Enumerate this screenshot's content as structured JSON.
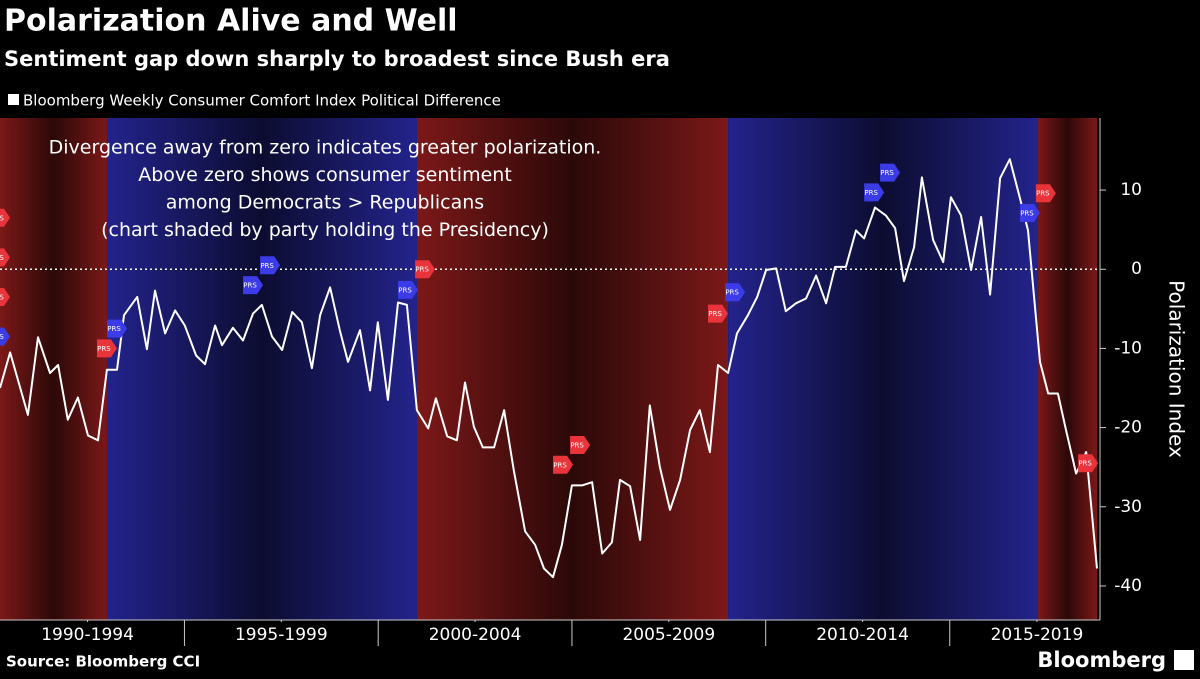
{
  "chart_data": {
    "type": "line",
    "title": "Polarization Alive and Well",
    "subtitle": "Sentiment gap down sharply to broadest since Bush era",
    "y_label": "Polarization Index",
    "note": [
      "Divergence away from zero indicates greater polarization.",
      "Above zero shows consumer sentiment",
      "among Democrats > Republicans",
      "(chart shaded by party holding the Presidency)"
    ],
    "source": "Source: Bloomberg CCI",
    "brand": "Bloomberg",
    "xlim": [
      1990.24,
      2018.55
    ],
    "ylim": [
      -44.3,
      19.1
    ],
    "yticks": [
      -40,
      -30,
      -20,
      -10,
      0,
      10
    ],
    "xticks": [
      {
        "value": 1992.5,
        "label": "1990-1994"
      },
      {
        "value": 1997.5,
        "label": "1995-1999"
      },
      {
        "value": 2002.5,
        "label": "2000-2004"
      },
      {
        "value": 2007.5,
        "label": "2005-2009"
      },
      {
        "value": 2012.5,
        "label": "2010-2014"
      },
      {
        "value": 2017.0,
        "label": "2015-2019"
      }
    ],
    "bands": [
      {
        "from": 1990.24,
        "to": 1993.0,
        "color": "#7c1818"
      },
      {
        "from": 1993.0,
        "to": 2001.0,
        "color": "#23238c"
      },
      {
        "from": 2001.0,
        "to": 2009.03,
        "color": "#7c1818"
      },
      {
        "from": 2009.03,
        "to": 2017.03,
        "color": "#23238c"
      },
      {
        "from": 2017.03,
        "to": 2018.55,
        "color": "#7c1818"
      }
    ],
    "x": [
      1990.24,
      1990.5,
      1990.96,
      1991.22,
      1991.53,
      1991.74,
      1991.99,
      1992.25,
      1992.51,
      1992.77,
      1993.0,
      1993.26,
      1993.44,
      1993.78,
      1994.03,
      1994.24,
      1994.5,
      1994.76,
      1995.01,
      1995.3,
      1995.53,
      1995.79,
      1995.97,
      1996.25,
      1996.51,
      1996.77,
      1997.0,
      1997.26,
      1997.52,
      1997.78,
      1998.03,
      1998.29,
      1998.5,
      1998.76,
      1999.01,
      1999.22,
      1999.53,
      1999.79,
      1999.99,
      2000.25,
      2000.51,
      2000.74,
      2001.0,
      2001.29,
      2001.49,
      2001.78,
      2002.03,
      2002.24,
      2002.47,
      2002.7,
      2002.99,
      2003.25,
      2003.5,
      2003.79,
      2004.05,
      2004.28,
      2004.51,
      2004.74,
      2005.0,
      2005.26,
      2005.52,
      2005.78,
      2006.03,
      2006.24,
      2006.5,
      2006.76,
      2007.01,
      2007.27,
      2007.53,
      2007.79,
      2008.05,
      2008.3,
      2008.56,
      2008.77,
      2009.03,
      2009.26,
      2009.54,
      2009.78,
      2010.01,
      2010.27,
      2010.52,
      2010.78,
      2011.04,
      2011.3,
      2011.56,
      2011.79,
      2012.07,
      2012.33,
      2012.54,
      2012.82,
      2013.1,
      2013.34,
      2013.57,
      2013.83,
      2014.03,
      2014.32,
      2014.58,
      2014.78,
      2015.04,
      2015.3,
      2015.56,
      2015.79,
      2016.05,
      2016.3,
      2016.56,
      2016.77,
      2017.08,
      2017.29,
      2017.54,
      2017.75,
      2018.01,
      2018.27,
      2018.55
    ],
    "series": [
      {
        "name": "Bloomberg Weekly Consumer Comfort Index Political Difference",
        "color": "#ffffff",
        "values": [
          -15,
          -10.5,
          -18.4,
          -8.6,
          -13.1,
          -12.1,
          -19,
          -16.2,
          -21,
          -21.6,
          -12.7,
          -12.7,
          -5.8,
          -3.5,
          -10.1,
          -2.7,
          -8.1,
          -5.2,
          -7.1,
          -10.9,
          -12,
          -7.1,
          -9.6,
          -7.4,
          -9,
          -5.6,
          -4.5,
          -8.5,
          -10.2,
          -5.4,
          -6.7,
          -12.5,
          -5.8,
          -2.3,
          -7.7,
          -11.7,
          -7.7,
          -15.3,
          -6.7,
          -16.5,
          -4.2,
          -4.5,
          -17.8,
          -20.1,
          -16.3,
          -21.1,
          -21.6,
          -14.3,
          -19.9,
          -22.5,
          -22.5,
          -17.8,
          -25.4,
          -33.1,
          -34.8,
          -37.8,
          -38.9,
          -34.8,
          -27.3,
          -27.3,
          -26.9,
          -35.9,
          -34.5,
          -26.6,
          -27.4,
          -34.2,
          -17.2,
          -25,
          -30.4,
          -26.6,
          -20.3,
          -17.8,
          -23.1,
          -12.1,
          -13.1,
          -8.1,
          -5.8,
          -3.5,
          -0.1,
          0.1,
          -5.3,
          -4.3,
          -3.7,
          -0.8,
          -4.3,
          0.3,
          0.3,
          4.9,
          3.9,
          7.8,
          6.8,
          5.2,
          -1.5,
          2.8,
          11.6,
          3.7,
          0.9,
          9.1,
          6.8,
          -0.1,
          6.6,
          -3.2,
          11.5,
          13.9,
          9,
          4.9,
          -11.7,
          -15.7,
          -15.7,
          -20.3,
          -25.8,
          -23.1,
          -37.8
        ]
      }
    ],
    "events": [
      {
        "x": 1990.24,
        "y": 6.5,
        "color": "#e8343a",
        "label": "PRS"
      },
      {
        "x": 1990.24,
        "y": 1.5,
        "color": "#e8343a",
        "label": "PRS"
      },
      {
        "x": 1990.24,
        "y": -3.5,
        "color": "#e8343a",
        "label": "PRS"
      },
      {
        "x": 1990.24,
        "y": -8.5,
        "color": "#3b3be8",
        "label": "PRS"
      },
      {
        "x": 1993.0,
        "y": -10,
        "color": "#e8343a",
        "label": "PRS"
      },
      {
        "x": 1993.26,
        "y": -7.5,
        "color": "#3b3be8",
        "label": "PRS"
      },
      {
        "x": 1996.77,
        "y": -2,
        "color": "#3b3be8",
        "label": "PRS"
      },
      {
        "x": 1997.21,
        "y": 0.5,
        "color": "#3b3be8",
        "label": "PRS"
      },
      {
        "x": 2000.77,
        "y": -2.6,
        "color": "#3b3be8",
        "label": "PRS"
      },
      {
        "x": 2001.21,
        "y": 0,
        "color": "#e8343a",
        "label": "PRS"
      },
      {
        "x": 2004.77,
        "y": -24.7,
        "color": "#e8343a",
        "label": "PRS"
      },
      {
        "x": 2005.21,
        "y": -22.2,
        "color": "#e8343a",
        "label": "PRS"
      },
      {
        "x": 2008.77,
        "y": -5.6,
        "color": "#e8343a",
        "label": "PRS"
      },
      {
        "x": 2009.21,
        "y": -2.9,
        "color": "#3b3be8",
        "label": "PRS"
      },
      {
        "x": 2012.8,
        "y": 9.7,
        "color": "#3b3be8",
        "label": "PRS"
      },
      {
        "x": 2013.21,
        "y": 12.2,
        "color": "#3b3be8",
        "label": "PRS"
      },
      {
        "x": 2016.82,
        "y": 7.1,
        "color": "#3b3be8",
        "label": "PRS"
      },
      {
        "x": 2017.23,
        "y": 9.6,
        "color": "#e8343a",
        "label": "PRS"
      },
      {
        "x": 2018.32,
        "y": -24.5,
        "color": "#e8343a",
        "label": "PRS"
      }
    ]
  }
}
